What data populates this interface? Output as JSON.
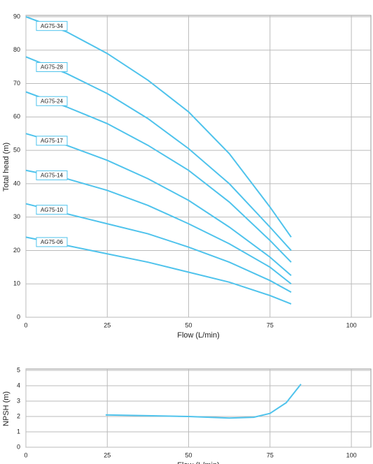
{
  "chart_data": [
    {
      "type": "line",
      "y_label": "Total head (m)",
      "x_label": "Flow (L/min)",
      "x": [
        0,
        12.5,
        25,
        37.5,
        50,
        62.5,
        75,
        81.5
      ],
      "series": [
        {
          "name": "AG75-34",
          "color": "#4fc3ec",
          "values": [
            90,
            85.5,
            79,
            71,
            61.5,
            49,
            33,
            24
          ]
        },
        {
          "name": "AG75-28",
          "color": "#4fc3ec",
          "values": [
            78,
            73,
            67,
            59.5,
            50.5,
            40,
            27,
            20
          ]
        },
        {
          "name": "AG75-24",
          "color": "#4fc3ec",
          "values": [
            67.5,
            63,
            58,
            51.5,
            44,
            34.5,
            23,
            16.5
          ]
        },
        {
          "name": "AG75-17",
          "color": "#4fc3ec",
          "values": [
            55,
            51.5,
            47,
            41.5,
            35,
            27,
            18,
            12.5
          ]
        },
        {
          "name": "AG75-14",
          "color": "#4fc3ec",
          "values": [
            44,
            41.5,
            38,
            33.5,
            28,
            22,
            15,
            10
          ]
        },
        {
          "name": "AG75-10",
          "color": "#4fc3ec",
          "values": [
            34,
            31,
            28,
            25,
            21,
            16.5,
            11,
            7.5
          ]
        },
        {
          "name": "AG75-06",
          "color": "#4fc3ec",
          "values": [
            24,
            21.5,
            19,
            16.5,
            13.5,
            10.5,
            6.5,
            4
          ]
        }
      ],
      "xlim": [
        0,
        106
      ],
      "xticks": [
        0,
        25,
        50,
        75,
        100
      ],
      "ylim": [
        0,
        90
      ],
      "yticks": [
        0,
        10,
        20,
        30,
        40,
        50,
        60,
        70,
        80,
        90
      ],
      "grid": true
    },
    {
      "type": "line",
      "y_label": "NPSH (m)",
      "x_label": "Flow (L/min)",
      "x": [
        24.5,
        37.5,
        50,
        62.5,
        70,
        75,
        80,
        84.5
      ],
      "series": [
        {
          "color": "#4fc3ec",
          "values": [
            2.1,
            2.05,
            2.0,
            1.9,
            1.95,
            2.2,
            2.9,
            4.1
          ]
        }
      ],
      "xlim": [
        0,
        106
      ],
      "xticks": [
        0,
        25,
        50,
        75,
        100
      ],
      "ylim": [
        0,
        5
      ],
      "yticks": [
        0,
        1,
        2,
        3,
        4,
        5
      ],
      "grid": true
    }
  ]
}
